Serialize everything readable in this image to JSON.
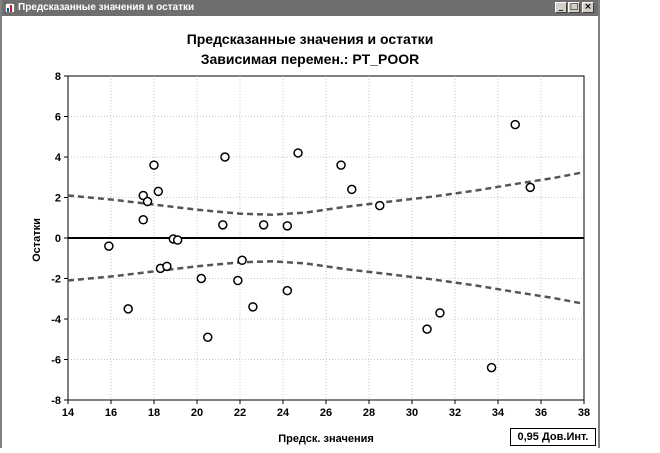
{
  "window": {
    "title": "Предсказанные значения и остатки",
    "controls": {
      "minimize": "_",
      "maximize": "□",
      "close": "×"
    }
  },
  "chart_data": {
    "type": "scatter",
    "title": "Предсказанные значения и остатки",
    "subtitle": "Зависимая перемен.: PT_POOR",
    "xlabel": "Предск. значения",
    "ylabel": "Остатки",
    "xlim": [
      14,
      38
    ],
    "ylim": [
      -8,
      8
    ],
    "xticks": [
      "14",
      "16",
      "18",
      "20",
      "22",
      "24",
      "26",
      "28",
      "30",
      "32",
      "34",
      "36",
      "38"
    ],
    "yticks": [
      "8",
      "6",
      "4",
      "2",
      "0",
      "-2",
      "-4",
      "-6",
      "-8"
    ],
    "grid": true,
    "legend": "0,95 Дов.Инт.",
    "points": [
      {
        "x": 15.9,
        "y": -0.4
      },
      {
        "x": 16.8,
        "y": -3.5
      },
      {
        "x": 17.5,
        "y": 2.1
      },
      {
        "x": 17.5,
        "y": 0.9
      },
      {
        "x": 17.7,
        "y": 1.8
      },
      {
        "x": 18.0,
        "y": 3.6
      },
      {
        "x": 18.2,
        "y": 2.3
      },
      {
        "x": 18.3,
        "y": -1.5
      },
      {
        "x": 18.6,
        "y": -1.4
      },
      {
        "x": 18.9,
        "y": -0.05
      },
      {
        "x": 19.1,
        "y": -0.1
      },
      {
        "x": 20.2,
        "y": -2.0
      },
      {
        "x": 20.5,
        "y": -4.9
      },
      {
        "x": 21.2,
        "y": 0.65
      },
      {
        "x": 21.3,
        "y": 4.0
      },
      {
        "x": 21.9,
        "y": -2.1
      },
      {
        "x": 22.1,
        "y": -1.1
      },
      {
        "x": 22.6,
        "y": -3.4
      },
      {
        "x": 23.1,
        "y": 0.65
      },
      {
        "x": 24.2,
        "y": 0.6
      },
      {
        "x": 24.2,
        "y": -2.6
      },
      {
        "x": 24.7,
        "y": 4.2
      },
      {
        "x": 26.7,
        "y": 3.6
      },
      {
        "x": 27.2,
        "y": 2.4
      },
      {
        "x": 28.5,
        "y": 1.6
      },
      {
        "x": 30.7,
        "y": -4.5
      },
      {
        "x": 31.3,
        "y": -3.7
      },
      {
        "x": 33.7,
        "y": -6.4
      },
      {
        "x": 34.8,
        "y": 5.6
      },
      {
        "x": 35.5,
        "y": 2.5
      }
    ],
    "zero_line": 0,
    "confidence_band": {
      "name": "0,95 Дов.Инт.",
      "x": [
        14,
        16,
        18,
        20,
        22,
        23.5,
        25,
        27,
        29,
        31,
        33,
        35,
        36.5,
        38
      ],
      "upper": [
        2.1,
        1.9,
        1.65,
        1.4,
        1.2,
        1.15,
        1.25,
        1.55,
        1.8,
        2.05,
        2.35,
        2.7,
        2.95,
        3.25
      ],
      "lower": [
        -2.1,
        -1.9,
        -1.65,
        -1.4,
        -1.2,
        -1.15,
        -1.25,
        -1.55,
        -1.8,
        -2.05,
        -2.35,
        -2.7,
        -2.95,
        -3.25
      ]
    }
  }
}
